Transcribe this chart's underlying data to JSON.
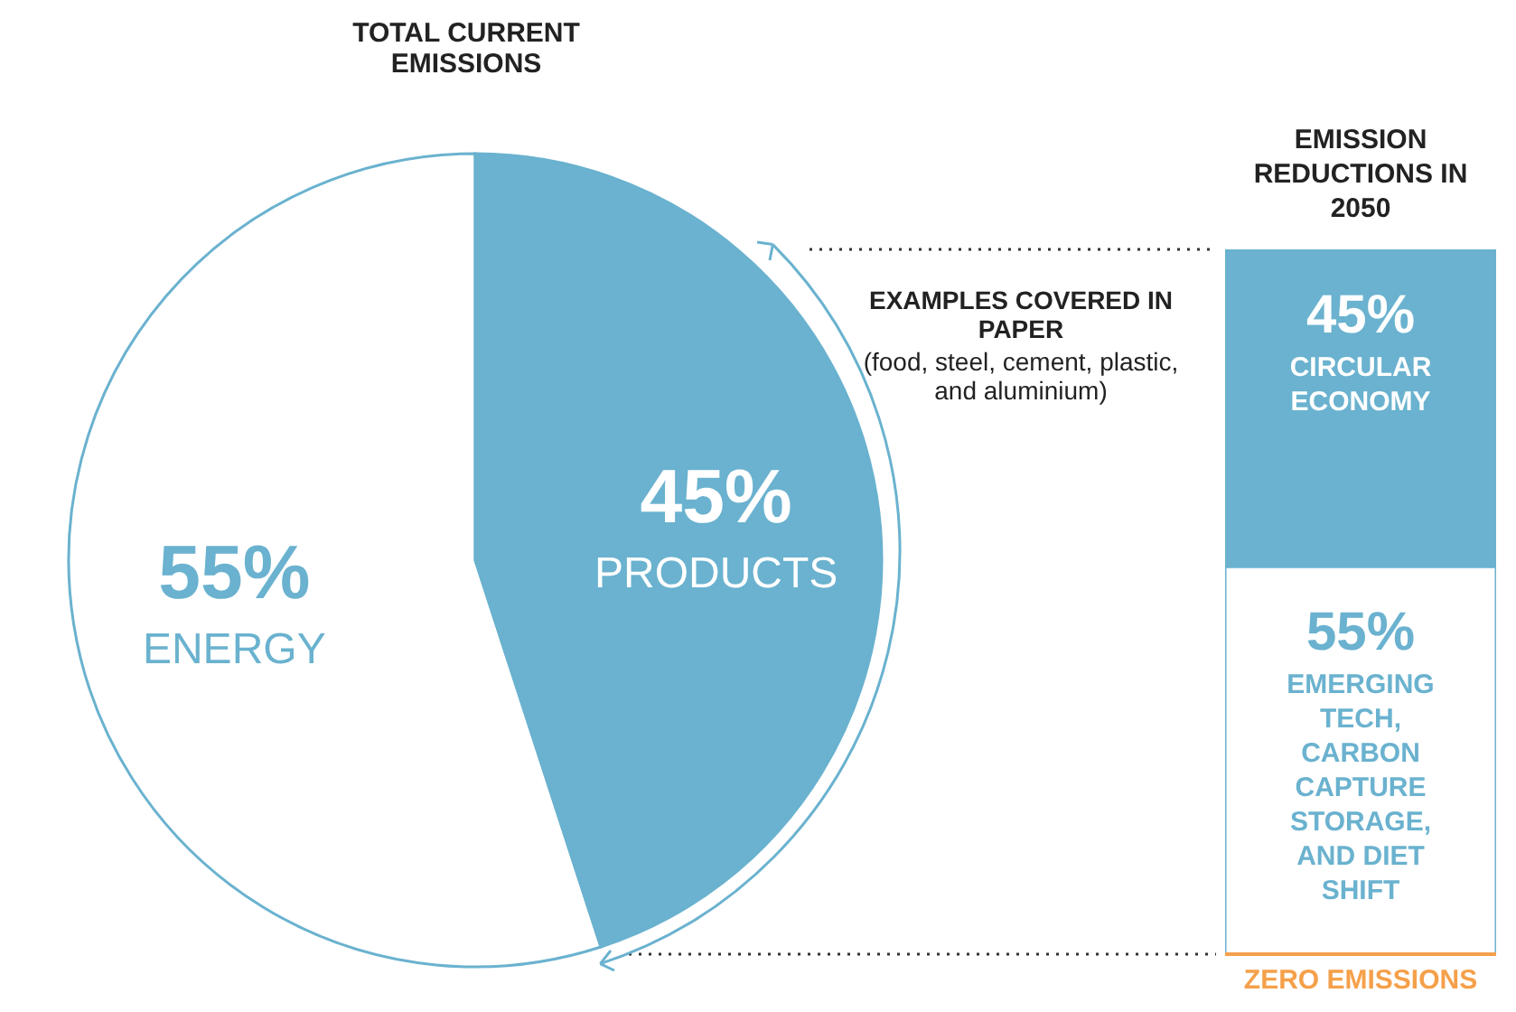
{
  "chart_data": [
    {
      "type": "pie",
      "title": "TOTAL CURRENT EMISSIONS",
      "categories": [
        "ENERGY",
        "PRODUCTS"
      ],
      "values": [
        55,
        45
      ],
      "colors": [
        "#ffffff",
        "#6ab2cf"
      ],
      "value_labels": [
        "55%",
        "45%"
      ],
      "legend": false,
      "annotations": [
        "EXAMPLES COVERED IN PAPER",
        "(food, steel, cement, plastic, and aluminium)"
      ]
    },
    {
      "type": "bar",
      "title": "EMISSION REDUCTIONS IN 2050",
      "categories": [
        null
      ],
      "stacked": true,
      "legend": false,
      "series": [
        {
          "name": "EMERGING TECH, CARBON CAPTURE STORAGE, AND DIET SHIFT",
          "color": "#ffffff",
          "values": [
            55
          ],
          "value_labels": [
            "55%"
          ]
        },
        {
          "name": "CIRCULAR ECONOMY",
          "color": "#6ab2cf",
          "values": [
            45
          ],
          "value_labels": [
            "45%"
          ]
        }
      ],
      "ref_lines": [
        {
          "axis": "y",
          "value": 0,
          "label": "ZERO EMISSIONS",
          "color": "#f5a04a"
        }
      ]
    }
  ]
}
